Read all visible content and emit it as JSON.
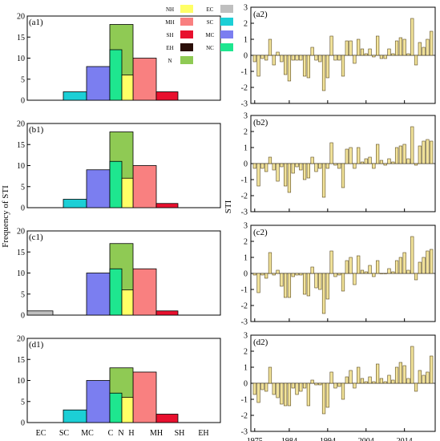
{
  "figure": {
    "ylabel_left": "Frequency of STI",
    "ylabel_right": "STI"
  },
  "legend": {
    "entries": [
      {
        "key": "NH",
        "color": "#ffff66"
      },
      {
        "key": "EC",
        "color": "#bfbfbf"
      },
      {
        "key": "MH",
        "color": "#f98080"
      },
      {
        "key": "SC",
        "color": "#1ccfd6"
      },
      {
        "key": "SH",
        "color": "#e8102e"
      },
      {
        "key": "MC",
        "color": "#7b7ef0"
      },
      {
        "key": "EH",
        "color": "#2a0e08"
      },
      {
        "key": "NC",
        "color": "#1ee68f"
      },
      {
        "key": "N",
        "color": "#8fca54"
      }
    ]
  },
  "chart_data": [
    {
      "panel": "(a1)",
      "type": "bar",
      "categories": [
        "EC",
        "SC",
        "MC",
        "C",
        "N",
        "H",
        "MH",
        "SH",
        "EH"
      ],
      "values": [
        0,
        2,
        8,
        12,
        18,
        6,
        10,
        2,
        0
      ],
      "ylim": [
        0,
        20
      ],
      "yticks": [
        0,
        5,
        10,
        15,
        20
      ]
    },
    {
      "panel": "(b1)",
      "type": "bar",
      "categories": [
        "EC",
        "SC",
        "MC",
        "C",
        "N",
        "H",
        "MH",
        "SH",
        "EH"
      ],
      "values": [
        0,
        2,
        9,
        11,
        18,
        7,
        10,
        1,
        0
      ],
      "ylim": [
        0,
        20
      ],
      "yticks": [
        0,
        5,
        10,
        15,
        20
      ]
    },
    {
      "panel": "(c1)",
      "type": "bar",
      "categories": [
        "EC",
        "SC",
        "MC",
        "C",
        "N",
        "H",
        "MH",
        "SH",
        "EH"
      ],
      "values": [
        1,
        0,
        10,
        11,
        17,
        6,
        11,
        1,
        0
      ],
      "ylim": [
        0,
        20
      ],
      "yticks": [
        0,
        5,
        10,
        15,
        20
      ]
    },
    {
      "panel": "(d1)",
      "type": "bar",
      "categories": [
        "EC",
        "SC",
        "MC",
        "C",
        "N",
        "H",
        "MH",
        "SH",
        "EH"
      ],
      "values": [
        0,
        3,
        10,
        7,
        13,
        6,
        12,
        2,
        0
      ],
      "ylim": [
        0,
        20
      ],
      "yticks": [
        0,
        5,
        10,
        15,
        20
      ]
    },
    {
      "panel": "(a2)",
      "type": "bar",
      "x_start": 1975,
      "values": [
        -0.4,
        -1.3,
        -0.2,
        -0.3,
        1.0,
        -0.6,
        0.2,
        -0.4,
        -1.2,
        -1.6,
        -0.3,
        -0.3,
        -0.3,
        -1.3,
        -1.4,
        0.5,
        -0.3,
        -0.4,
        -2.2,
        -1.4,
        1.2,
        -0.3,
        -0.3,
        -1.3,
        0.9,
        0.9,
        -0.5,
        1.0,
        0.4,
        0.1,
        0.4,
        -0.1,
        1.2,
        -0.2,
        -0.2,
        0.4,
        0.1,
        0.9,
        1.1,
        1.0,
        0.1,
        2.3,
        -0.6,
        0.8,
        0.5,
        1.0,
        1.5
      ],
      "xticks": [
        1975,
        1984,
        1994,
        2004,
        2014
      ],
      "ylim": [
        -3,
        3
      ],
      "yticks": [
        -3,
        -2,
        -1,
        0,
        1,
        2,
        3
      ]
    },
    {
      "panel": "(b2)",
      "type": "bar",
      "x_start": 1975,
      "values": [
        -0.3,
        -1.4,
        -0.3,
        -0.5,
        0.4,
        -0.4,
        -1.1,
        -0.2,
        -1.4,
        -1.8,
        -0.6,
        -0.2,
        -0.4,
        -1.0,
        -0.9,
        0.4,
        -0.5,
        -0.3,
        -2.1,
        -0.3,
        1.3,
        -0.1,
        -0.3,
        -1.5,
        0.9,
        1.0,
        -0.3,
        1.0,
        0.1,
        0.3,
        0.4,
        -0.3,
        1.2,
        0.2,
        -0.1,
        0.3,
        0.1,
        1.0,
        1.1,
        1.2,
        0.3,
        2.3,
        -0.1,
        1.1,
        1.4,
        1.5,
        1.4
      ],
      "xticks": [
        1975,
        1984,
        1994,
        2004,
        2014
      ],
      "ylim": [
        -3,
        3
      ],
      "yticks": [
        -3,
        -2,
        -1,
        0,
        1,
        2,
        3
      ]
    },
    {
      "panel": "(c2)",
      "type": "bar",
      "x_start": 1975,
      "values": [
        -0.1,
        -1.2,
        -0.1,
        -0.3,
        1.3,
        -0.1,
        0.2,
        -0.8,
        -1.5,
        -1.5,
        -0.2,
        -0.1,
        -0.1,
        -1.3,
        -1.4,
        0.4,
        -0.9,
        -1.0,
        -2.5,
        -1.6,
        1.4,
        -0.2,
        -0.1,
        -1.1,
        0.8,
        1.0,
        -0.7,
        1.1,
        0.2,
        0.1,
        0.5,
        -0.2,
        0.8,
        0.0,
        0.0,
        0.3,
        0.1,
        0.8,
        1.0,
        1.3,
        0.2,
        2.3,
        -0.4,
        0.7,
        1.0,
        1.4,
        1.5
      ],
      "xticks": [
        1975,
        1984,
        1994,
        2004,
        2014
      ],
      "ylim": [
        -3,
        3
      ],
      "yticks": [
        -3,
        -2,
        -1,
        0,
        1,
        2,
        3
      ]
    },
    {
      "panel": "(d2)",
      "type": "bar",
      "x_start": 1975,
      "values": [
        -0.7,
        -1.2,
        -0.4,
        -0.5,
        1.0,
        -0.7,
        -0.9,
        -1.3,
        -1.4,
        -1.4,
        -0.3,
        -0.7,
        -0.5,
        -0.3,
        -1.4,
        0.2,
        -0.1,
        -0.1,
        -1.9,
        -1.5,
        0.7,
        -0.3,
        -0.2,
        -1.0,
        0.4,
        0.8,
        -0.3,
        1.0,
        0.3,
        0.1,
        0.4,
        0.1,
        1.2,
        0.3,
        0.1,
        0.5,
        0.2,
        1.0,
        1.3,
        1.1,
        0.3,
        2.3,
        -0.5,
        0.8,
        0.5,
        0.7,
        1.7
      ],
      "xticks": [
        1975,
        1984,
        1994,
        2004,
        2014
      ],
      "ylim": [
        -3,
        3
      ],
      "yticks": [
        -3,
        -2,
        -1,
        0,
        1,
        2,
        3
      ]
    }
  ]
}
